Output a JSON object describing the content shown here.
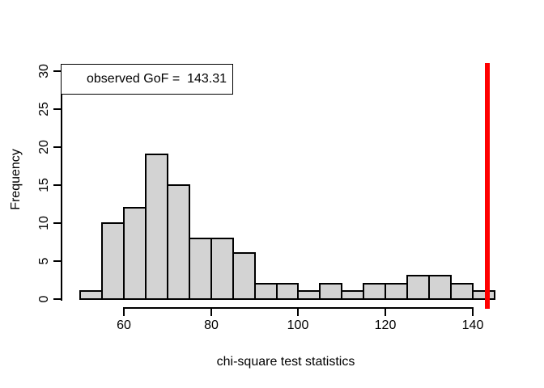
{
  "figure": {
    "background": "#ffffff"
  },
  "chart_data": {
    "type": "histogram",
    "title": "",
    "xlabel": "chi-square test statistics",
    "ylabel": "Frequency",
    "bin_edges": [
      50,
      55,
      60,
      65,
      70,
      75,
      80,
      85,
      90,
      95,
      100,
      105,
      110,
      115,
      120,
      125,
      130,
      135,
      140,
      145
    ],
    "frequencies": [
      1,
      10,
      12,
      19,
      15,
      8,
      8,
      6,
      2,
      2,
      1,
      2,
      1,
      2,
      2,
      3,
      3,
      2,
      1
    ],
    "x_ticks": [
      60,
      80,
      100,
      120,
      140
    ],
    "y_ticks": [
      0,
      5,
      10,
      15,
      20,
      25,
      30
    ],
    "xlim": [
      50,
      145
    ],
    "ylim": [
      0,
      30
    ],
    "grid": false,
    "legend_position": "topleft",
    "legend": {
      "label": "observed GoF =  143.31"
    },
    "observed_line": {
      "value": 143.31,
      "color": "#ff0000"
    },
    "bar_fill": "#d3d3d3",
    "bar_border": "#000000",
    "axis_color": "#000000"
  }
}
